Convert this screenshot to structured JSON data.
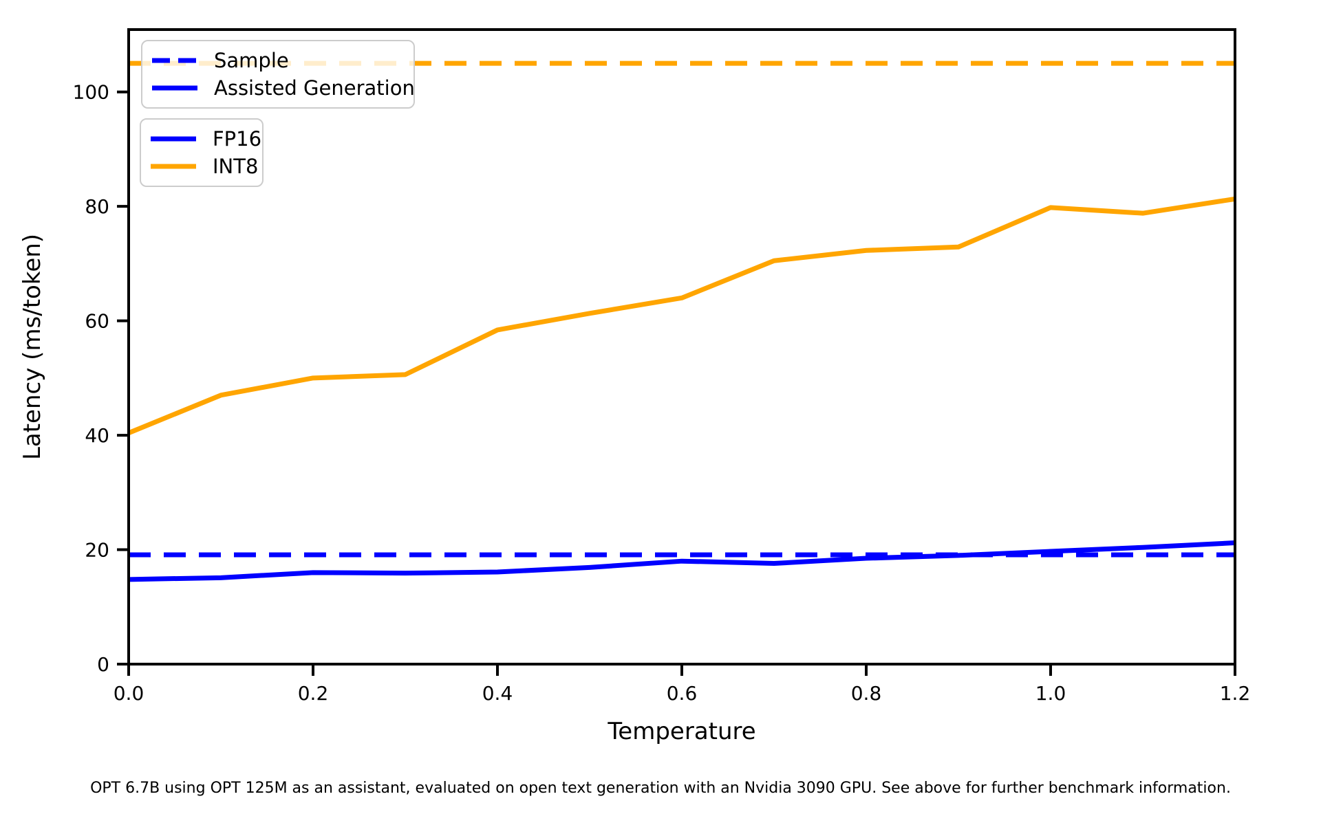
{
  "figure": {
    "caption": "OPT 6.7B using OPT 125M as an assistant, evaluated on open text generation with an Nvidia 3090 GPU. See above for further benchmark information."
  },
  "legends": {
    "style": {
      "items": [
        {
          "label": "Sample",
          "color": "#0000ff",
          "linestyle": "dashed"
        },
        {
          "label": "Assisted Generation",
          "color": "#0000ff",
          "linestyle": "solid"
        }
      ]
    },
    "precision": {
      "items": [
        {
          "label": "FP16",
          "color": "#0000ff",
          "linestyle": "solid"
        },
        {
          "label": "INT8",
          "color": "#ffa500",
          "linestyle": "solid"
        }
      ]
    }
  },
  "chart_data": {
    "type": "line",
    "title": "",
    "xlabel": "Temperature",
    "ylabel": "Latency (ms/token)",
    "xlim": [
      0,
      1.2
    ],
    "ylim": [
      0,
      110.9
    ],
    "grid": false,
    "legend_position": "upper left",
    "xticks": {
      "values": [
        0,
        0.2,
        0.4,
        0.6,
        0.8,
        1.0,
        1.2
      ],
      "labels": [
        "0.0",
        "0.2",
        "0.4",
        "0.6",
        "0.8",
        "1.0",
        "1.2"
      ]
    },
    "yticks": {
      "values": [
        0,
        20,
        40,
        60,
        80,
        100
      ],
      "labels": [
        "0",
        "20",
        "40",
        "60",
        "80",
        "100"
      ]
    },
    "x": [
      0.0,
      0.1,
      0.2,
      0.3,
      0.4,
      0.5,
      0.6,
      0.7,
      0.8,
      0.9,
      1.0,
      1.1,
      1.2
    ],
    "series": [
      {
        "name": "Assisted Generation INT8",
        "legend": "INT8",
        "color": "#ffa500",
        "linestyle": "solid",
        "values": [
          40.4,
          47.0,
          50.0,
          50.6,
          58.4,
          61.3,
          64.0,
          70.5,
          72.3,
          72.9,
          79.8,
          78.8,
          81.3
        ]
      },
      {
        "name": "Assisted Generation FP16",
        "legend": "FP16",
        "color": "#0000ff",
        "linestyle": "solid",
        "values": [
          14.8,
          15.1,
          16.0,
          15.9,
          16.1,
          16.9,
          18.0,
          17.6,
          18.5,
          19.0,
          19.7,
          20.4,
          21.2
        ]
      }
    ],
    "hlines": [
      {
        "name": "Sample INT8",
        "legend": "INT8",
        "color": "#ffa500",
        "linestyle": "dashed",
        "y": 105.0
      },
      {
        "name": "Sample FP16",
        "legend": "FP16",
        "color": "#0000ff",
        "linestyle": "dashed",
        "y": 19.1
      }
    ]
  }
}
